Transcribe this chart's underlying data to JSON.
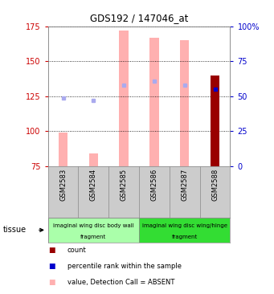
{
  "title": "GDS192 / 147046_at",
  "samples": [
    "GSM2583",
    "GSM2584",
    "GSM2585",
    "GSM2586",
    "GSM2587",
    "GSM2588"
  ],
  "ylim_left": [
    75,
    175
  ],
  "ylim_right": [
    0,
    100
  ],
  "yticks_left": [
    75,
    100,
    125,
    150,
    175
  ],
  "yticks_right": [
    0,
    25,
    50,
    75,
    100
  ],
  "tick_label_color_left": "#cc0000",
  "tick_label_color_right": "#0000cc",
  "absent_value_bars": {
    "bottom": [
      75,
      75,
      75,
      75,
      75,
      null
    ],
    "top": [
      99,
      84,
      172,
      167,
      165,
      null
    ]
  },
  "absent_rank_dots": {
    "y": [
      124,
      122,
      133,
      136,
      133,
      null
    ]
  },
  "count_bars": {
    "bottom": [
      null,
      null,
      null,
      null,
      null,
      75
    ],
    "top": [
      null,
      null,
      null,
      null,
      null,
      140
    ]
  },
  "percentile_rank_dots": {
    "y": [
      null,
      null,
      null,
      null,
      null,
      130
    ]
  },
  "tissue_groups": [
    {
      "label_top": "imaginal wing disc body wall",
      "label_bot": "fragment",
      "start": 0,
      "end": 3,
      "color": "#aaffaa"
    },
    {
      "label_top": "imaginal wing disc wing/hinge",
      "label_bot": "fragment",
      "start": 3,
      "end": 6,
      "color": "#33dd33"
    }
  ],
  "color_absent_value": "#ffb0b0",
  "color_absent_rank": "#aaaaee",
  "color_count": "#990000",
  "color_percentile": "#0000cc",
  "bg_color": "#ffffff",
  "plot_bg_color": "#ffffff",
  "grid_color": "#000000",
  "label_box_color": "#cccccc",
  "bar_width": 0.3
}
